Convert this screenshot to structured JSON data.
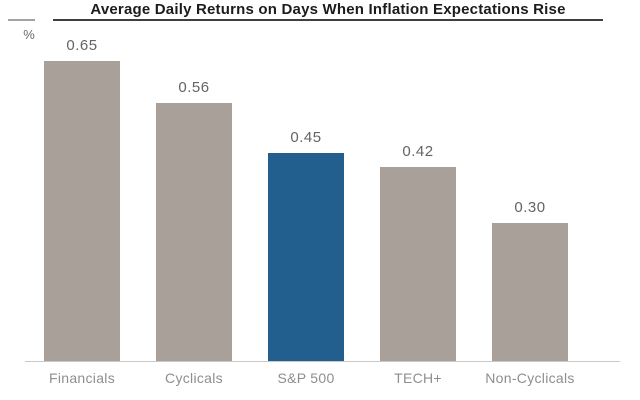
{
  "chart": {
    "title": "Average Daily Returns on Days When Inflation Expectations Rise",
    "unit_label": "%"
  },
  "chart_data": {
    "type": "bar",
    "title": "Average Daily Returns on Days When Inflation Expectations Rise",
    "categories": [
      "Financials",
      "Cyclicals",
      "S&P 500",
      "TECH+",
      "Non-Cyclicals"
    ],
    "values": [
      0.65,
      0.56,
      0.45,
      0.42,
      0.3
    ],
    "value_labels": [
      "0.65",
      "0.56",
      "0.45",
      "0.42",
      "0.30"
    ],
    "xlabel": "",
    "ylabel": "%",
    "ylim": [
      0,
      0.7
    ],
    "grid": false,
    "legend": false,
    "highlight_index": 2,
    "colors": {
      "bar_default": "#a8a099",
      "bar_highlight": "#235f8e",
      "axis_line": "#c9c9c9",
      "value_label": "#646464",
      "category_label": "#8e8e8e",
      "title_text": "#1c1c1c",
      "title_rule": "#3f3f3f"
    }
  }
}
